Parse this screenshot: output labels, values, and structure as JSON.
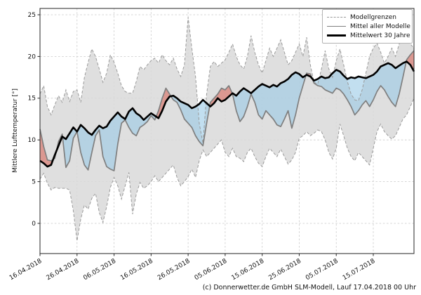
{
  "caption": "(c) Donnerwetter.de GmbH SLM-Modell, Lauf 17.04.2018 00 Uhr",
  "colors": {
    "band_fill": "#d9d9d9",
    "boundary_line": "#9a9a9a",
    "model_mean_line": "#7f7f7f",
    "mean30_line": "#000000",
    "above_fill": "rgba(217,105,93,0.6)",
    "below_fill": "rgba(153,201,230,0.6)",
    "grid_line": "#c9c9c9",
    "frame": "#262626"
  },
  "chart_data": {
    "type": "area",
    "title": "",
    "ylabel": "Mittlere Lufttemperatur [°]",
    "xlabel": "",
    "grid": true,
    "legend_position": "top-right",
    "legend": [
      "Modellgrenzen",
      "Mittel aller Modelle",
      "Mittelwert 30 Jahre"
    ],
    "y_ticks": [
      0,
      5,
      10,
      15,
      20,
      25
    ],
    "ylim": [
      -3.6,
      25.8
    ],
    "x_tick_days": [
      0,
      10,
      20,
      30,
      40,
      50,
      60,
      70,
      80,
      90
    ],
    "x_tick_labels": [
      "16.04.2018",
      "26.04.2018",
      "06.05.2018",
      "16.05.2018",
      "26.05.2018",
      "05.06.2018",
      "15.06.2018",
      "25.06.2018",
      "05.07.2018",
      "15.07.2018"
    ],
    "xlim_days": [
      0,
      101
    ],
    "series": [
      {
        "name": "Modellgrenzen (oben)",
        "style": "dashed-gray",
        "values": [
          15.5,
          16.5,
          14.0,
          13.0,
          14.2,
          15.3,
          14.5,
          16.0,
          14.6,
          15.8,
          16.0,
          14.5,
          17.5,
          19.3,
          20.9,
          20.0,
          18.5,
          16.9,
          18.0,
          20.2,
          19.3,
          18.0,
          16.5,
          15.8,
          15.6,
          15.6,
          17.0,
          18.8,
          18.4,
          19.0,
          19.5,
          19.8,
          19.2,
          20.2,
          19.5,
          19.0,
          19.8,
          18.5,
          17.6,
          19.0,
          24.7,
          21.0,
          17.6,
          12.0,
          9.6,
          15.5,
          18.8,
          19.4,
          18.8,
          19.2,
          19.6,
          20.5,
          21.5,
          20.0,
          19.0,
          18.5,
          20.0,
          22.5,
          20.5,
          19.0,
          18.0,
          19.5,
          21.0,
          20.0,
          21.0,
          22.0,
          20.5,
          19.0,
          19.5,
          20.5,
          21.5,
          20.0,
          22.3,
          19.0,
          16.9,
          16.7,
          18.5,
          20.7,
          18.5,
          17.5,
          19.5,
          20.9,
          19.0,
          17.0,
          15.5,
          14.8,
          14.7,
          16.0,
          18.0,
          20.0,
          21.0,
          21.6,
          20.5,
          19.2,
          20.0,
          21.0,
          20.0,
          21.5,
          22.6,
          22.0,
          21.5,
          21.0
        ]
      },
      {
        "name": "Modellgrenzen (unten)",
        "style": "dashed-gray",
        "values": [
          5.3,
          6.0,
          4.8,
          4.0,
          4.3,
          4.2,
          4.2,
          4.2,
          4.0,
          1.5,
          -2.1,
          0.5,
          2.2,
          1.7,
          3.0,
          3.6,
          1.3,
          0.1,
          2.0,
          4.3,
          5.5,
          4.5,
          2.9,
          4.5,
          6.1,
          1.1,
          3.5,
          4.9,
          4.2,
          4.5,
          5.0,
          5.7,
          5.0,
          5.5,
          6.0,
          6.5,
          7.0,
          5.5,
          4.5,
          5.0,
          5.6,
          6.5,
          5.5,
          7.5,
          8.8,
          8.0,
          8.5,
          9.0,
          9.5,
          10.0,
          8.5,
          8.0,
          9.0,
          8.0,
          7.8,
          7.4,
          8.5,
          9.0,
          8.0,
          7.2,
          6.8,
          8.0,
          9.0,
          8.5,
          8.0,
          8.9,
          8.0,
          7.1,
          7.6,
          8.5,
          10.2,
          10.5,
          11.0,
          10.5,
          10.8,
          11.2,
          11.0,
          10.0,
          8.5,
          7.7,
          9.0,
          11.9,
          10.5,
          9.0,
          8.0,
          7.5,
          8.5,
          8.0,
          7.5,
          7.0,
          9.0,
          11.0,
          11.9,
          11.0,
          10.5,
          10.1,
          10.5,
          11.5,
          12.5,
          13.0,
          14.0,
          15.0
        ]
      },
      {
        "name": "Mittel aller Modelle",
        "style": "solid-gray",
        "values": [
          11.3,
          9.2,
          7.6,
          7.5,
          7.8,
          9.8,
          10.7,
          6.7,
          7.5,
          10.2,
          11.0,
          8.5,
          7.0,
          6.4,
          8.5,
          10.5,
          11.2,
          8.0,
          6.8,
          6.5,
          6.3,
          9.5,
          12.0,
          12.4,
          11.5,
          10.8,
          10.5,
          11.5,
          11.8,
          12.2,
          12.9,
          12.4,
          13.5,
          15.0,
          16.2,
          15.5,
          14.8,
          14.5,
          13.6,
          12.5,
          12.0,
          11.5,
          10.5,
          9.8,
          9.3,
          12.0,
          14.5,
          15.0,
          15.5,
          16.2,
          16.0,
          16.5,
          15.5,
          13.5,
          12.2,
          12.8,
          14.0,
          15.5,
          14.5,
          13.0,
          12.5,
          13.5,
          13.0,
          12.5,
          11.8,
          11.6,
          12.5,
          13.5,
          11.4,
          13.0,
          15.0,
          16.5,
          18.0,
          17.9,
          16.8,
          16.5,
          16.4,
          16.0,
          15.8,
          15.6,
          16.2,
          16.0,
          15.5,
          14.8,
          14.0,
          13.0,
          13.5,
          14.2,
          14.7,
          14.0,
          14.8,
          15.8,
          16.5,
          16.0,
          15.2,
          14.5,
          14.0,
          15.5,
          17.5,
          19.6,
          20.2,
          20.7
        ]
      },
      {
        "name": "Mittelwert 30 Jahre",
        "style": "solid-black-thick",
        "values": [
          7.5,
          7.2,
          6.8,
          7.0,
          8.2,
          9.3,
          10.4,
          10.1,
          10.8,
          11.5,
          11.0,
          11.8,
          11.4,
          10.9,
          10.6,
          11.2,
          11.7,
          11.4,
          11.6,
          12.3,
          12.8,
          13.3,
          12.8,
          12.5,
          13.4,
          13.8,
          13.2,
          12.9,
          12.4,
          12.8,
          13.2,
          12.9,
          12.6,
          13.5,
          14.6,
          15.2,
          15.3,
          15.0,
          14.6,
          14.4,
          14.2,
          13.8,
          14.0,
          14.3,
          14.8,
          14.4,
          14.0,
          14.4,
          15.0,
          14.6,
          14.8,
          15.2,
          15.6,
          15.3,
          15.8,
          16.2,
          15.9,
          15.6,
          16.0,
          16.4,
          16.7,
          16.5,
          16.3,
          16.6,
          16.4,
          16.8,
          17.0,
          17.3,
          17.8,
          18.1,
          17.9,
          17.5,
          17.8,
          17.6,
          17.1,
          17.3,
          17.6,
          17.4,
          17.5,
          18.0,
          18.4,
          18.2,
          17.7,
          17.3,
          17.5,
          17.4,
          17.6,
          17.5,
          17.4,
          17.6,
          17.8,
          18.2,
          18.8,
          19.0,
          19.2,
          19.0,
          18.6,
          18.9,
          19.2,
          19.4,
          19.0,
          18.2
        ]
      }
    ]
  }
}
